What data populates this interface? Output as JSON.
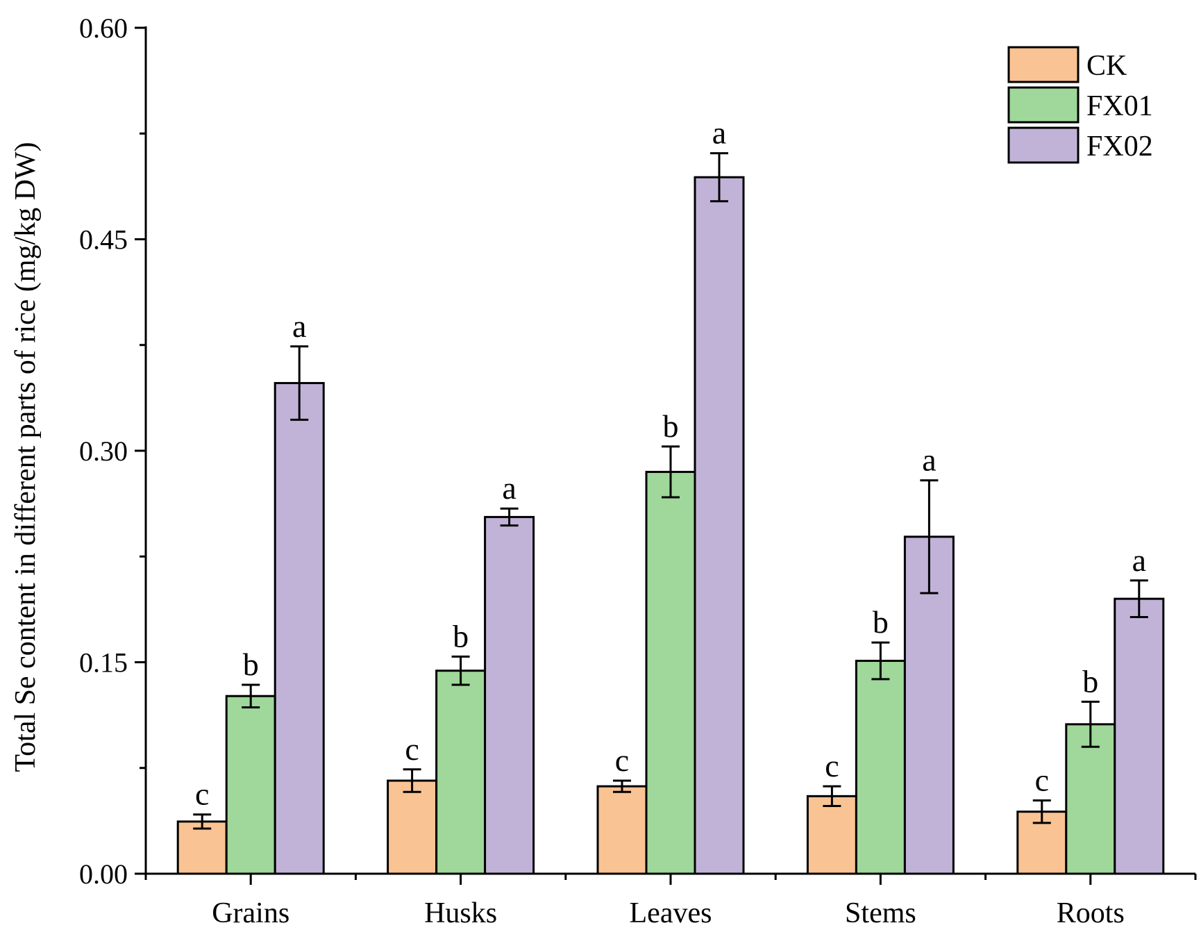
{
  "chart_data": {
    "type": "bar",
    "title": "",
    "xlabel": "",
    "ylabel": "Total Se content in different parts of rice (mg/kg DW)",
    "ylim": [
      0,
      0.6
    ],
    "yticks": [
      "0.00",
      "0.15",
      "0.30",
      "0.45",
      "0.60"
    ],
    "categories": [
      "Grains",
      "Husks",
      "Leaves",
      "Stems",
      "Roots"
    ],
    "legend_position": "top-right",
    "grid": false,
    "series": [
      {
        "name": "CK",
        "color": "#f9c394",
        "values": [
          0.037,
          0.066,
          0.062,
          0.055,
          0.044
        ],
        "errors": [
          0.005,
          0.008,
          0.004,
          0.007,
          0.008
        ],
        "sig": [
          "c",
          "c",
          "c",
          "c",
          "c"
        ]
      },
      {
        "name": "FX01",
        "color": "#9fd89a",
        "values": [
          0.126,
          0.144,
          0.285,
          0.151,
          0.106
        ],
        "errors": [
          0.008,
          0.01,
          0.018,
          0.013,
          0.016
        ],
        "sig": [
          "b",
          "b",
          "b",
          "b",
          "b"
        ]
      },
      {
        "name": "FX02",
        "color": "#c1b3d8",
        "values": [
          0.348,
          0.253,
          0.494,
          0.239,
          0.195
        ],
        "errors": [
          0.026,
          0.006,
          0.017,
          0.04,
          0.013
        ],
        "sig": [
          "a",
          "a",
          "a",
          "a",
          "a"
        ]
      }
    ]
  }
}
